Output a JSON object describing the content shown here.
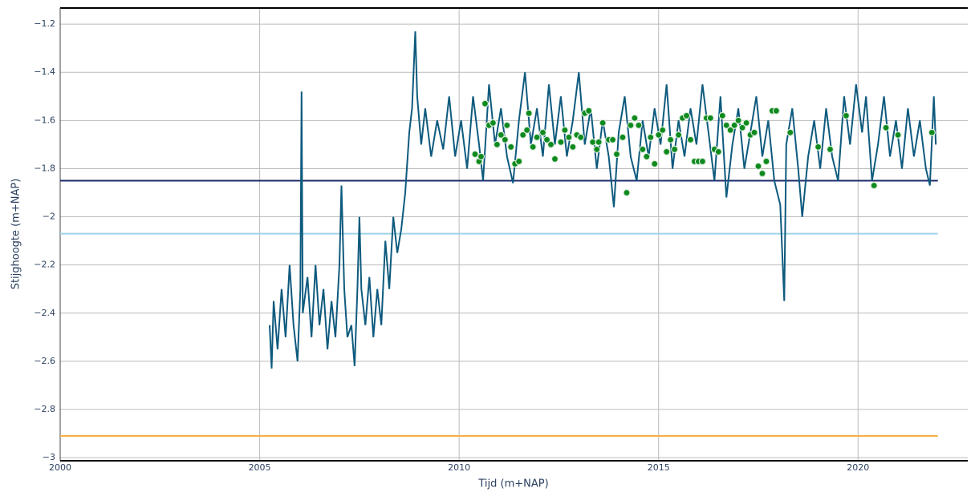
{
  "chart_data": {
    "type": "line",
    "xlabel": "Tijd (m+NAP)",
    "ylabel": "Stijghoogte (m+NAP)",
    "xlim": [
      2000,
      2022.75
    ],
    "ylim": [
      -3.013,
      -1.133
    ],
    "xticks": [
      2000,
      2005,
      2010,
      2015,
      2020
    ],
    "yticks": [
      {
        "value": -1.2,
        "label": "−1.2"
      },
      {
        "value": -1.4,
        "label": "−1.4"
      },
      {
        "value": -1.6,
        "label": "−1.6"
      },
      {
        "value": -1.8,
        "label": "−1.8"
      },
      {
        "value": -2,
        "label": "−2"
      },
      {
        "value": -2.2,
        "label": "−2.2"
      },
      {
        "value": -2.4,
        "label": "−2.4"
      },
      {
        "value": -2.6,
        "label": "−2.6"
      },
      {
        "value": -2.8,
        "label": "−2.8"
      },
      {
        "value": -3,
        "label": "−3"
      }
    ],
    "grid": true,
    "series": [
      {
        "type": "line",
        "color": "#1b2a6b",
        "x": [
          2000,
          2022
        ],
        "values": [
          -1.85,
          -1.85
        ]
      },
      {
        "type": "line",
        "color": "#9fd3e8",
        "x": [
          2000,
          2022
        ],
        "values": [
          -2.07,
          -2.07
        ]
      },
      {
        "type": "line",
        "color": "#f6b041",
        "x": [
          2000,
          2022
        ],
        "values": [
          -2.91,
          -2.91
        ]
      },
      {
        "type": "line",
        "color": "#0e5a7e",
        "x": [
          2005.25,
          2005.3,
          2005.35,
          2005.45,
          2005.55,
          2005.65,
          2005.75,
          2005.85,
          2005.95,
          2006.02,
          2006.05,
          2006.08,
          2006.2,
          2006.3,
          2006.4,
          2006.5,
          2006.6,
          2006.7,
          2006.8,
          2006.9,
          2007.0,
          2007.05,
          2007.12,
          2007.2,
          2007.3,
          2007.38,
          2007.45,
          2007.5,
          2007.55,
          2007.65,
          2007.75,
          2007.85,
          2007.95,
          2008.05,
          2008.15,
          2008.25,
          2008.35,
          2008.45,
          2008.55,
          2008.65,
          2008.75,
          2008.82,
          2008.9,
          2008.95,
          2009.05,
          2009.15,
          2009.3,
          2009.45,
          2009.6,
          2009.75,
          2009.9,
          2010.05,
          2010.2,
          2010.35,
          2010.5,
          2010.6,
          2010.75,
          2010.9,
          2011.05,
          2011.2,
          2011.35,
          2011.5,
          2011.65,
          2011.8,
          2011.95,
          2012.1,
          2012.25,
          2012.4,
          2012.55,
          2012.7,
          2012.85,
          2013.0,
          2013.15,
          2013.3,
          2013.45,
          2013.6,
          2013.75,
          2013.88,
          2014.0,
          2014.15,
          2014.3,
          2014.45,
          2014.6,
          2014.75,
          2014.9,
          2015.05,
          2015.2,
          2015.35,
          2015.5,
          2015.65,
          2015.8,
          2015.95,
          2016.1,
          2016.25,
          2016.4,
          2016.55,
          2016.7,
          2016.85,
          2017.0,
          2017.15,
          2017.3,
          2017.45,
          2017.6,
          2017.75,
          2017.9,
          2018.05,
          2018.15,
          2018.2,
          2018.35,
          2018.5,
          2018.6,
          2018.75,
          2018.9,
          2019.05,
          2019.2,
          2019.35,
          2019.5,
          2019.65,
          2019.8,
          2019.95,
          2020.1,
          2020.2,
          2020.35,
          2020.5,
          2020.65,
          2020.8,
          2020.95,
          2021.1,
          2021.25,
          2021.4,
          2021.55,
          2021.7,
          2021.8,
          2021.9,
          2021.95
        ],
        "values": [
          -2.45,
          -2.63,
          -2.35,
          -2.55,
          -2.3,
          -2.5,
          -2.2,
          -2.45,
          -2.6,
          -2.3,
          -1.48,
          -2.4,
          -2.25,
          -2.5,
          -2.2,
          -2.45,
          -2.3,
          -2.55,
          -2.35,
          -2.5,
          -2.2,
          -1.87,
          -2.3,
          -2.5,
          -2.45,
          -2.62,
          -2.3,
          -2.0,
          -2.3,
          -2.45,
          -2.25,
          -2.5,
          -2.3,
          -2.45,
          -2.1,
          -2.3,
          -2.0,
          -2.15,
          -2.05,
          -1.9,
          -1.65,
          -1.55,
          -1.23,
          -1.5,
          -1.7,
          -1.55,
          -1.75,
          -1.6,
          -1.72,
          -1.5,
          -1.75,
          -1.6,
          -1.8,
          -1.5,
          -1.7,
          -1.85,
          -1.45,
          -1.7,
          -1.55,
          -1.75,
          -1.86,
          -1.6,
          -1.4,
          -1.7,
          -1.55,
          -1.75,
          -1.45,
          -1.7,
          -1.5,
          -1.75,
          -1.6,
          -1.4,
          -1.7,
          -1.55,
          -1.8,
          -1.6,
          -1.75,
          -1.96,
          -1.65,
          -1.5,
          -1.75,
          -1.85,
          -1.6,
          -1.75,
          -1.55,
          -1.7,
          -1.45,
          -1.8,
          -1.6,
          -1.75,
          -1.55,
          -1.7,
          -1.45,
          -1.65,
          -1.85,
          -1.5,
          -1.92,
          -1.7,
          -1.55,
          -1.8,
          -1.65,
          -1.5,
          -1.75,
          -1.6,
          -1.85,
          -1.95,
          -2.35,
          -1.7,
          -1.55,
          -1.8,
          -2.0,
          -1.75,
          -1.6,
          -1.8,
          -1.55,
          -1.75,
          -1.85,
          -1.5,
          -1.7,
          -1.45,
          -1.65,
          -1.5,
          -1.85,
          -1.7,
          -1.5,
          -1.75,
          -1.6,
          -1.8,
          -1.55,
          -1.75,
          -1.6,
          -1.8,
          -1.87,
          -1.5,
          -1.7
        ]
      },
      {
        "type": "scatter",
        "color": "#0f8a1f",
        "x": [
          2010.4,
          2010.5,
          2010.55,
          2010.65,
          2010.75,
          2010.85,
          2010.95,
          2011.05,
          2011.15,
          2011.2,
          2011.3,
          2011.4,
          2011.5,
          2011.6,
          2011.7,
          2011.75,
          2011.85,
          2011.95,
          2012.1,
          2012.2,
          2012.3,
          2012.4,
          2012.55,
          2012.65,
          2012.75,
          2012.85,
          2012.95,
          2013.05,
          2013.15,
          2013.25,
          2013.35,
          2013.45,
          2013.5,
          2013.6,
          2013.75,
          2013.85,
          2013.95,
          2014.1,
          2014.2,
          2014.3,
          2014.4,
          2014.5,
          2014.6,
          2014.7,
          2014.8,
          2014.9,
          2015.0,
          2015.1,
          2015.2,
          2015.3,
          2015.4,
          2015.5,
          2015.6,
          2015.7,
          2015.8,
          2015.9,
          2016.0,
          2016.1,
          2016.2,
          2016.3,
          2016.4,
          2016.5,
          2016.6,
          2016.7,
          2016.8,
          2016.9,
          2017.0,
          2017.1,
          2017.2,
          2017.3,
          2017.4,
          2017.5,
          2017.6,
          2017.7,
          2017.85,
          2017.95,
          2018.3,
          2019.0,
          2019.3,
          2019.7,
          2020.4,
          2020.7,
          2021.0,
          2021.85
        ],
        "values": [
          -1.74,
          -1.77,
          -1.75,
          -1.53,
          -1.62,
          -1.61,
          -1.7,
          -1.66,
          -1.68,
          -1.62,
          -1.71,
          -1.78,
          -1.77,
          -1.66,
          -1.64,
          -1.57,
          -1.71,
          -1.67,
          -1.65,
          -1.68,
          -1.7,
          -1.76,
          -1.69,
          -1.64,
          -1.67,
          -1.71,
          -1.66,
          -1.67,
          -1.57,
          -1.56,
          -1.69,
          -1.72,
          -1.69,
          -1.61,
          -1.68,
          -1.68,
          -1.74,
          -1.67,
          -1.9,
          -1.62,
          -1.59,
          -1.62,
          -1.72,
          -1.75,
          -1.67,
          -1.78,
          -1.66,
          -1.64,
          -1.73,
          -1.68,
          -1.72,
          -1.66,
          -1.59,
          -1.58,
          -1.68,
          -1.77,
          -1.77,
          -1.77,
          -1.59,
          -1.59,
          -1.72,
          -1.73,
          -1.58,
          -1.62,
          -1.64,
          -1.62,
          -1.6,
          -1.63,
          -1.61,
          -1.66,
          -1.65,
          -1.79,
          -1.82,
          -1.77,
          -1.56,
          -1.56,
          -1.65,
          -1.71,
          -1.72,
          -1.58,
          -1.87,
          -1.63,
          -1.66,
          -1.65
        ]
      }
    ]
  }
}
